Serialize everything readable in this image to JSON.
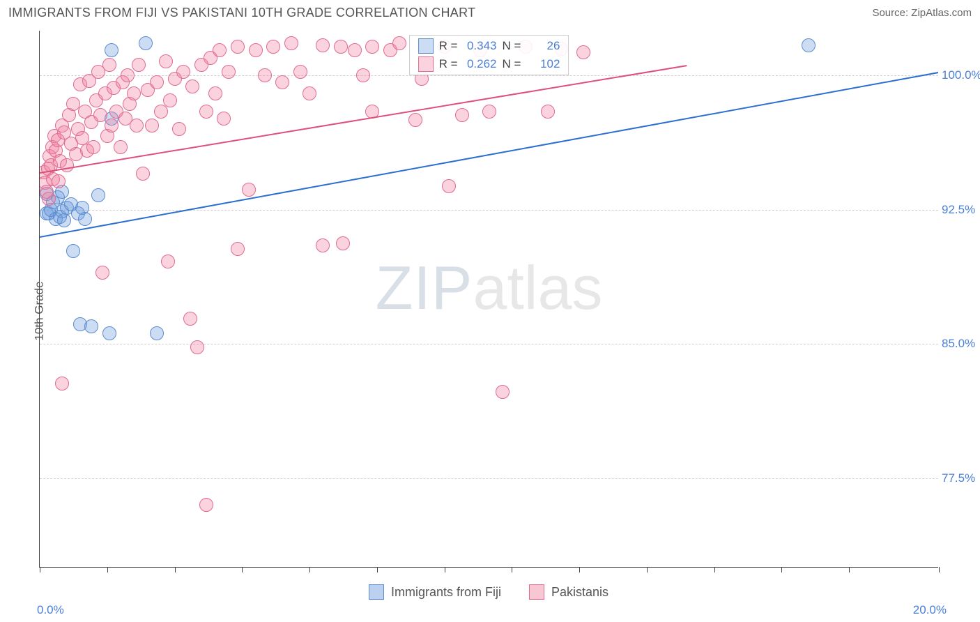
{
  "header": {
    "title": "IMMIGRANTS FROM FIJI VS PAKISTANI 10TH GRADE CORRELATION CHART",
    "source": "Source: ZipAtlas.com"
  },
  "watermark": {
    "zip": "ZIP",
    "atlas": "atlas"
  },
  "chart": {
    "type": "scatter",
    "xlabel": "",
    "ylabel": "10th Grade",
    "xlim": [
      0,
      20
    ],
    "ylim": [
      72.5,
      102.5
    ],
    "xtick_positions": [
      0,
      1.5,
      3.0,
      4.5,
      6.0,
      7.5,
      9.0,
      10.5,
      12.0,
      13.5,
      15.0,
      16.5,
      18.0,
      20.0
    ],
    "xtick_labels": {
      "start": "0.0%",
      "end": "20.0%"
    },
    "yticks": [
      {
        "v": 77.5,
        "label": "77.5%"
      },
      {
        "v": 85.0,
        "label": "85.0%"
      },
      {
        "v": 92.5,
        "label": "92.5%"
      },
      {
        "v": 100.0,
        "label": "100.0%"
      }
    ],
    "grid_color": "#d0d0d0",
    "background_color": "#ffffff",
    "marker_radius": 10,
    "series": [
      {
        "name": "Immigrants from Fiji",
        "fill": "rgba(106,154,220,0.35)",
        "stroke": "#5b8cd0",
        "trend": {
          "x1": 0,
          "y1": 91.0,
          "x2": 20,
          "y2": 100.2,
          "color": "#2b6fd0"
        },
        "r": "0.343",
        "n": "26",
        "points": [
          [
            0.15,
            93.4
          ],
          [
            0.15,
            92.3
          ],
          [
            0.2,
            92.3
          ],
          [
            0.25,
            92.5
          ],
          [
            0.3,
            92.9
          ],
          [
            0.35,
            92.0
          ],
          [
            0.4,
            93.2
          ],
          [
            0.45,
            92.1
          ],
          [
            0.5,
            92.4
          ],
          [
            0.55,
            91.9
          ],
          [
            0.6,
            92.6
          ],
          [
            0.5,
            93.5
          ],
          [
            0.7,
            92.8
          ],
          [
            0.75,
            90.2
          ],
          [
            0.85,
            92.3
          ],
          [
            0.95,
            92.6
          ],
          [
            1.0,
            92.0
          ],
          [
            0.9,
            86.1
          ],
          [
            1.15,
            86.0
          ],
          [
            1.6,
            97.6
          ],
          [
            1.3,
            93.3
          ],
          [
            1.55,
            85.6
          ],
          [
            2.35,
            101.8
          ],
          [
            2.6,
            85.6
          ],
          [
            1.6,
            101.4
          ],
          [
            17.1,
            101.7
          ]
        ]
      },
      {
        "name": "Pakistanis",
        "fill": "rgba(240,130,160,0.35)",
        "stroke": "#e06a92",
        "trend": {
          "x1": 0,
          "y1": 94.6,
          "x2": 14.4,
          "y2": 100.6,
          "color": "#de4f7c"
        },
        "r": "0.262",
        "n": "102",
        "points": [
          [
            0.1,
            94.6
          ],
          [
            0.12,
            94.0
          ],
          [
            0.15,
            93.5
          ],
          [
            0.18,
            94.8
          ],
          [
            0.2,
            93.1
          ],
          [
            0.22,
            95.5
          ],
          [
            0.25,
            95.0
          ],
          [
            0.28,
            96.0
          ],
          [
            0.3,
            94.2
          ],
          [
            0.32,
            96.6
          ],
          [
            0.35,
            95.8
          ],
          [
            0.4,
            96.4
          ],
          [
            0.42,
            94.1
          ],
          [
            0.45,
            95.2
          ],
          [
            0.5,
            97.2
          ],
          [
            0.5,
            82.8
          ],
          [
            0.55,
            96.8
          ],
          [
            0.6,
            95.0
          ],
          [
            0.65,
            97.8
          ],
          [
            0.7,
            96.2
          ],
          [
            0.75,
            98.4
          ],
          [
            0.8,
            95.6
          ],
          [
            0.85,
            97.0
          ],
          [
            0.9,
            99.5
          ],
          [
            0.95,
            96.5
          ],
          [
            1.0,
            98.0
          ],
          [
            1.05,
            95.8
          ],
          [
            1.1,
            99.7
          ],
          [
            1.15,
            97.4
          ],
          [
            1.2,
            96.0
          ],
          [
            1.25,
            98.6
          ],
          [
            1.3,
            100.2
          ],
          [
            1.35,
            97.8
          ],
          [
            1.4,
            89.0
          ],
          [
            1.45,
            99.0
          ],
          [
            1.5,
            96.6
          ],
          [
            1.55,
            100.6
          ],
          [
            1.6,
            97.2
          ],
          [
            1.65,
            99.3
          ],
          [
            1.7,
            98.0
          ],
          [
            1.8,
            96.0
          ],
          [
            1.85,
            99.6
          ],
          [
            1.9,
            97.6
          ],
          [
            1.95,
            100.0
          ],
          [
            2.0,
            98.4
          ],
          [
            2.1,
            99.0
          ],
          [
            2.15,
            97.2
          ],
          [
            2.2,
            100.6
          ],
          [
            2.3,
            94.5
          ],
          [
            2.4,
            99.2
          ],
          [
            2.5,
            97.2
          ],
          [
            2.6,
            99.6
          ],
          [
            2.7,
            98.0
          ],
          [
            2.8,
            100.8
          ],
          [
            2.85,
            89.6
          ],
          [
            2.9,
            98.6
          ],
          [
            3.0,
            99.8
          ],
          [
            3.1,
            97.0
          ],
          [
            3.2,
            100.2
          ],
          [
            3.35,
            86.4
          ],
          [
            3.4,
            99.4
          ],
          [
            3.5,
            84.8
          ],
          [
            3.6,
            100.6
          ],
          [
            3.7,
            98.0
          ],
          [
            3.8,
            101.0
          ],
          [
            3.7,
            76.0
          ],
          [
            3.9,
            99.0
          ],
          [
            4.0,
            101.4
          ],
          [
            4.1,
            97.6
          ],
          [
            4.2,
            100.2
          ],
          [
            4.4,
            101.6
          ],
          [
            4.4,
            90.3
          ],
          [
            4.65,
            93.6
          ],
          [
            4.8,
            101.4
          ],
          [
            5.0,
            100.0
          ],
          [
            5.2,
            101.6
          ],
          [
            5.4,
            99.6
          ],
          [
            5.6,
            101.8
          ],
          [
            5.8,
            100.2
          ],
          [
            6.0,
            99.0
          ],
          [
            6.3,
            101.7
          ],
          [
            6.3,
            90.5
          ],
          [
            6.7,
            101.6
          ],
          [
            6.75,
            90.6
          ],
          [
            7.0,
            101.4
          ],
          [
            7.2,
            100.0
          ],
          [
            7.4,
            101.6
          ],
          [
            7.4,
            98.0
          ],
          [
            7.8,
            101.4
          ],
          [
            8.0,
            101.8
          ],
          [
            8.35,
            97.5
          ],
          [
            8.5,
            99.8
          ],
          [
            9.0,
            101.6
          ],
          [
            9.1,
            93.8
          ],
          [
            9.4,
            97.8
          ],
          [
            9.8,
            101.4
          ],
          [
            10.0,
            98.0
          ],
          [
            10.3,
            82.3
          ],
          [
            10.8,
            101.6
          ],
          [
            11.3,
            98.0
          ],
          [
            11.6,
            101.5
          ],
          [
            12.1,
            101.3
          ]
        ]
      }
    ]
  },
  "legend_bottom": {
    "items": [
      {
        "label": "Immigrants from Fiji",
        "fill": "rgba(106,154,220,0.45)",
        "stroke": "#5b8cd0"
      },
      {
        "label": "Pakistanis",
        "fill": "rgba(240,130,160,0.45)",
        "stroke": "#e06a92"
      }
    ]
  }
}
